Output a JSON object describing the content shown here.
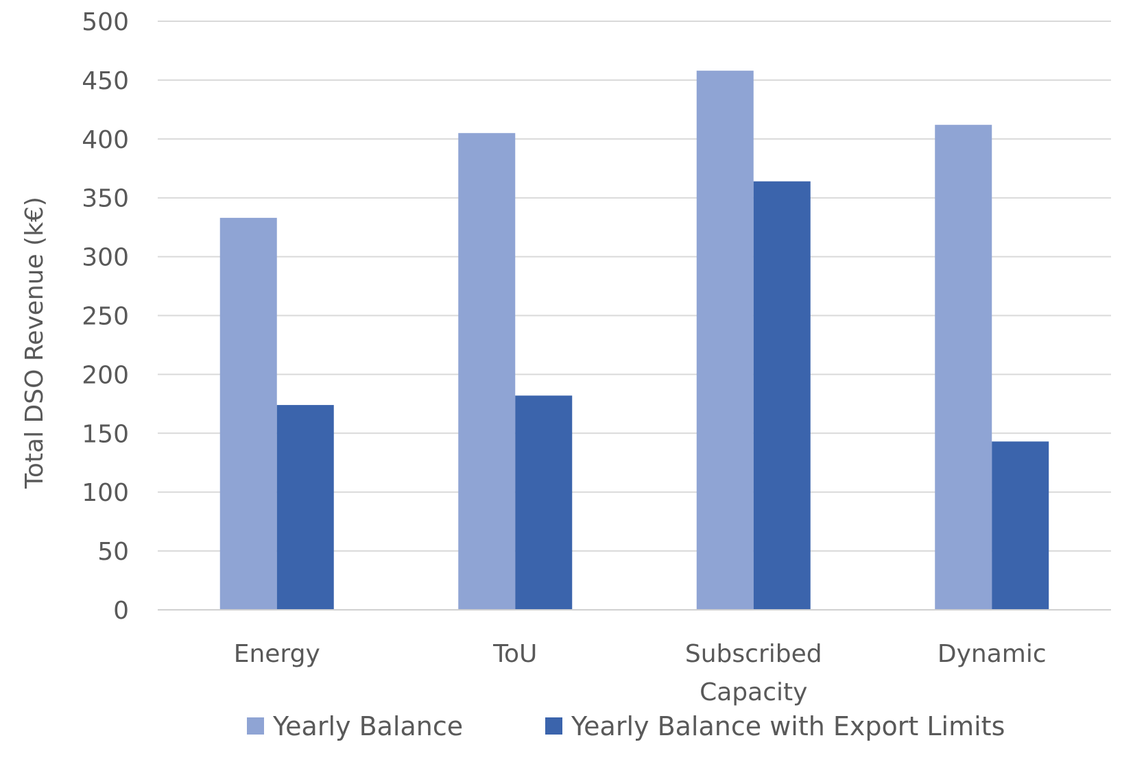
{
  "chart_data": {
    "type": "bar",
    "title": "",
    "xlabel": "",
    "ylabel": "Total DSO Revenue (k€)",
    "ylim": [
      0,
      500
    ],
    "yticks": [
      0,
      50,
      100,
      150,
      200,
      250,
      300,
      350,
      400,
      450,
      500
    ],
    "grid": true,
    "legend_position": "bottom",
    "categories": [
      [
        "Energy"
      ],
      [
        "ToU"
      ],
      [
        "Subscribed",
        "Capacity"
      ],
      [
        "Dynamic"
      ]
    ],
    "series": [
      {
        "name": "Yearly Balance",
        "color": "#8fa4d4",
        "values": [
          333,
          405,
          458,
          412
        ]
      },
      {
        "name": "Yearly Balance with Export Limits",
        "color": "#3b64ac",
        "values": [
          174,
          182,
          364,
          143
        ]
      }
    ]
  }
}
